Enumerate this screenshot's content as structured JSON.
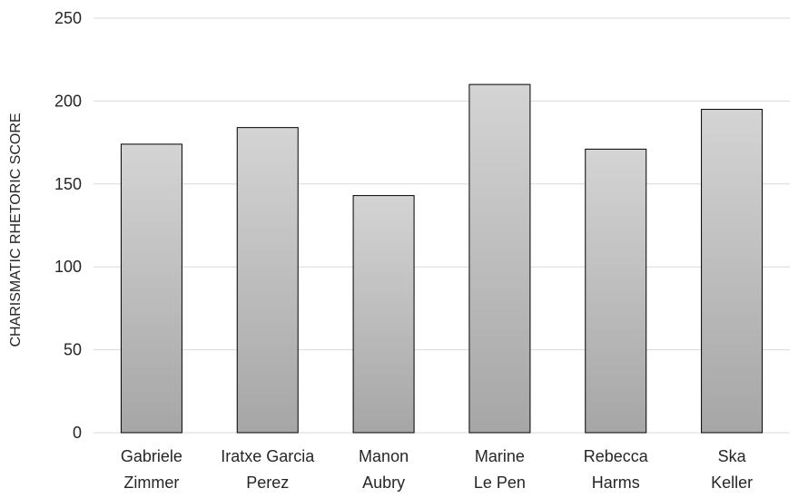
{
  "chart_data": {
    "type": "bar",
    "title": "",
    "xlabel": "",
    "ylabel": "CHARISMATIC RHETORIC SCORE",
    "categories": [
      [
        "Gabriele",
        "Zimmer"
      ],
      [
        "Iratxe Garcia",
        "Perez"
      ],
      [
        "Manon",
        "Aubry"
      ],
      [
        "Marine",
        "Le Pen"
      ],
      [
        "Rebecca",
        "Harms"
      ],
      [
        "Ska",
        "Keller"
      ]
    ],
    "values": [
      174,
      184,
      143,
      210,
      171,
      195
    ],
    "ylim": [
      0,
      250
    ],
    "yticks": [
      0,
      50,
      100,
      150,
      200,
      250
    ],
    "grid": true,
    "legend": "none",
    "colors": {
      "bar_top": "#d4d4d4",
      "bar_bottom": "#a6a6a6",
      "bar_stroke": "#000000",
      "grid": "#d9d9d9",
      "text": "#262626"
    }
  }
}
